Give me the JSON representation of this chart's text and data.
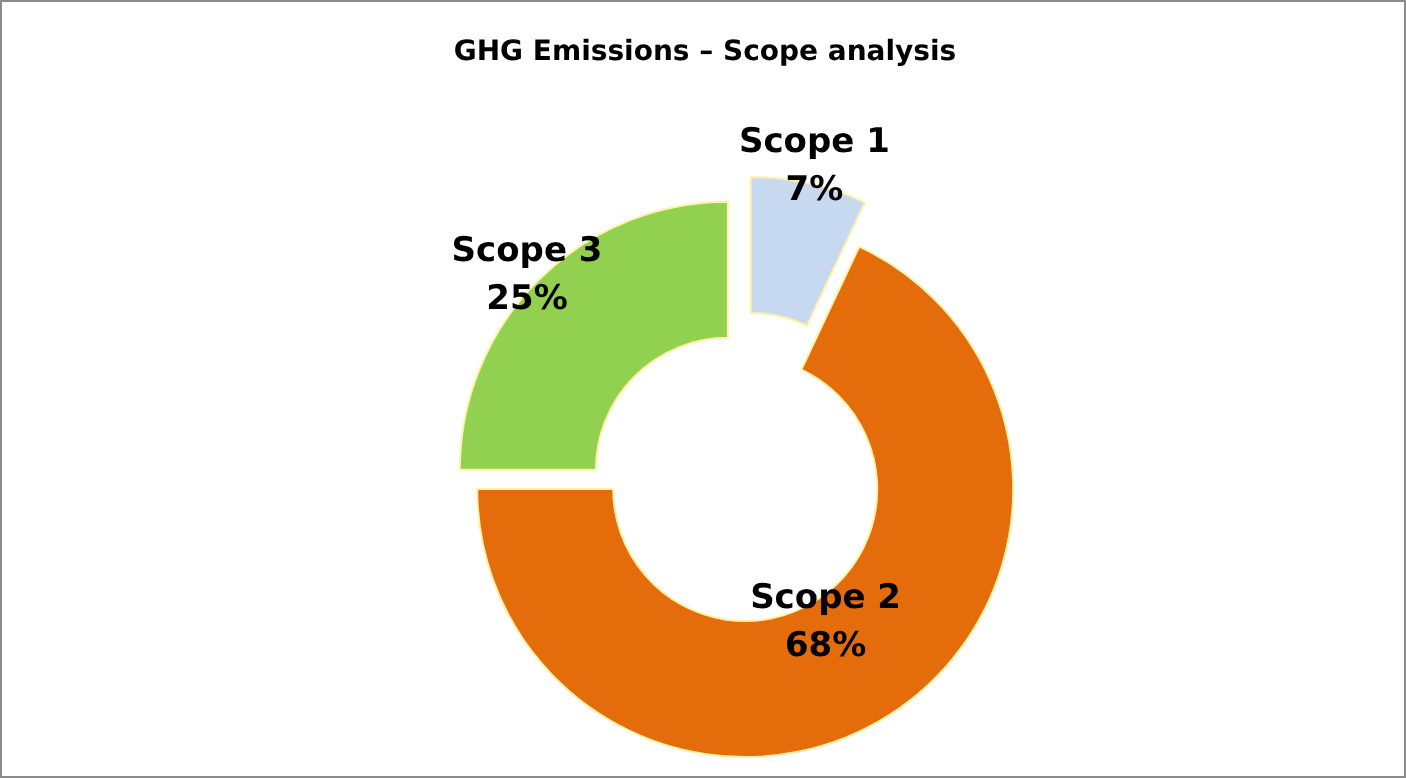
{
  "chart_data": {
    "type": "donut",
    "title": "GHG Emissions – Scope analysis",
    "categories": [
      "Scope 1",
      "Scope 2",
      "Scope 3"
    ],
    "values": [
      7,
      68,
      25
    ],
    "colors": [
      "#c6d9f0",
      "#e46c0a",
      "#92d050"
    ],
    "value_labels": [
      "7%",
      "68%",
      "25%"
    ]
  }
}
